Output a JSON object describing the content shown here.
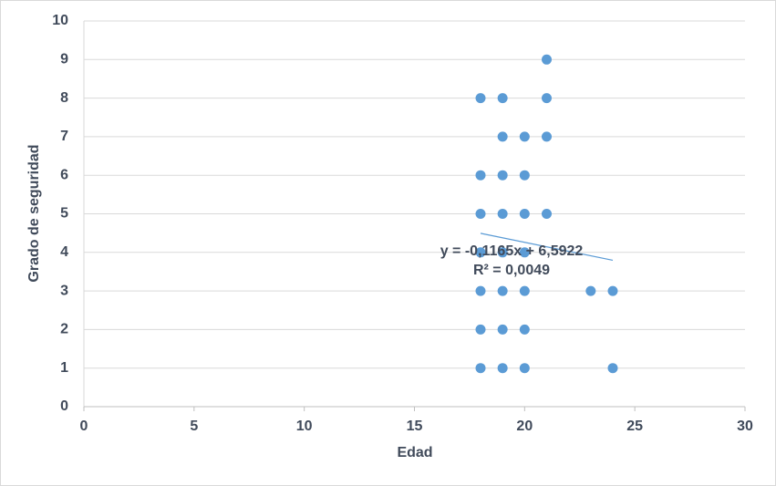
{
  "chart_data": {
    "type": "scatter",
    "x_label": "Edad",
    "y_label": "Grado de seguridad",
    "series": [
      {
        "name": "Grado de seguridad",
        "color": "#5b9bd5",
        "x": [
          21,
          18,
          19,
          21,
          19,
          20,
          21,
          18,
          19,
          20,
          18,
          19,
          20,
          21,
          18,
          19,
          20,
          18,
          19,
          20,
          23,
          24,
          18,
          19,
          20,
          18,
          19,
          20,
          24
        ],
        "values": [
          9,
          8,
          8,
          8,
          7,
          7,
          7,
          6,
          6,
          6,
          5,
          5,
          5,
          5,
          4,
          4,
          4,
          3,
          3,
          3,
          3,
          3,
          2,
          2,
          2,
          1,
          1,
          1,
          1
        ]
      }
    ],
    "trendline": {
      "slope": -0.1165,
      "intercept": 6.5922,
      "equation": "y = -0,1165x + 6,5922",
      "r2": "R² = 0,0049",
      "color": "#5b9bd5"
    },
    "xlim": [
      0,
      30
    ],
    "xticks": [
      0,
      5,
      10,
      15,
      20,
      25,
      30
    ],
    "ylim": [
      0,
      10
    ],
    "yticks": [
      0,
      1,
      2,
      3,
      4,
      5,
      6,
      7,
      8,
      9,
      10
    ],
    "grid": true
  }
}
